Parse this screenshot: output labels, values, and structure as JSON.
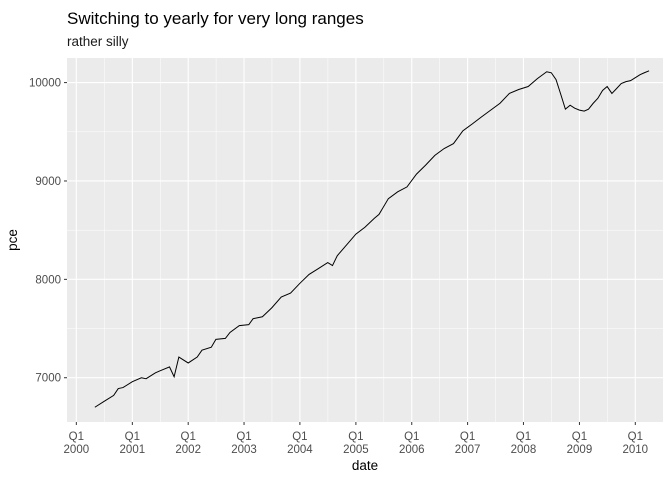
{
  "chart_data": {
    "type": "line",
    "title": "Switching to yearly for very long ranges",
    "subtitle": "rather silly",
    "xlabel": "date",
    "ylabel": "pce",
    "background": "#EBEBEB",
    "grid": true,
    "grid_color": "#FFFFFF",
    "line_color": "#000000",
    "xlim": [
      "1999-11-01",
      "2010-07-01"
    ],
    "ylim": [
      6550,
      10250
    ],
    "x_ticks": [
      {
        "date": "2000-01-01",
        "label": "Q1\n2000"
      },
      {
        "date": "2001-01-01",
        "label": "Q1\n2001"
      },
      {
        "date": "2002-01-01",
        "label": "Q1\n2002"
      },
      {
        "date": "2003-01-01",
        "label": "Q1\n2003"
      },
      {
        "date": "2004-01-01",
        "label": "Q1\n2004"
      },
      {
        "date": "2005-01-01",
        "label": "Q1\n2005"
      },
      {
        "date": "2006-01-01",
        "label": "Q1\n2006"
      },
      {
        "date": "2007-01-01",
        "label": "Q1\n2007"
      },
      {
        "date": "2008-01-01",
        "label": "Q1\n2008"
      },
      {
        "date": "2009-01-01",
        "label": "Q1\n2009"
      },
      {
        "date": "2010-01-01",
        "label": "Q1\n2010"
      }
    ],
    "y_ticks": [
      7000,
      8000,
      9000,
      10000
    ],
    "x": [
      "2000-05",
      "2000-07",
      "2000-09",
      "2000-10",
      "2000-11",
      "2001-01",
      "2001-03",
      "2001-04",
      "2001-06",
      "2001-07",
      "2001-09",
      "2001-10",
      "2001-11",
      "2002-01",
      "2002-03",
      "2002-04",
      "2002-06",
      "2002-07",
      "2002-09",
      "2002-10",
      "2002-12",
      "2003-02",
      "2003-03",
      "2003-05",
      "2003-07",
      "2003-09",
      "2003-11",
      "2004-01",
      "2004-03",
      "2004-05",
      "2004-07",
      "2004-08",
      "2004-09",
      "2004-11",
      "2005-01",
      "2005-03",
      "2005-05",
      "2005-06",
      "2005-08",
      "2005-10",
      "2005-12",
      "2006-02",
      "2006-04",
      "2006-06",
      "2006-08",
      "2006-10",
      "2006-12",
      "2007-02",
      "2007-04",
      "2007-06",
      "2007-08",
      "2007-10",
      "2007-12",
      "2008-02",
      "2008-04",
      "2008-06",
      "2008-07",
      "2008-08",
      "2008-09",
      "2008-10",
      "2008-11",
      "2008-12",
      "2009-01",
      "2009-02",
      "2009-03",
      "2009-04",
      "2009-05",
      "2009-06",
      "2009-07",
      "2009-08",
      "2009-09",
      "2009-10",
      "2009-11",
      "2009-12",
      "2010-01",
      "2010-02",
      "2010-03",
      "2010-04"
    ],
    "series": [
      {
        "values": [
          6700,
          6760,
          6820,
          6890,
          6900,
          6960,
          7000,
          6990,
          7050,
          7070,
          7110,
          7010,
          7210,
          7150,
          7210,
          7280,
          7310,
          7390,
          7400,
          7460,
          7530,
          7540,
          7600,
          7620,
          7710,
          7820,
          7860,
          7960,
          8050,
          8110,
          8170,
          8140,
          8240,
          8350,
          8460,
          8530,
          8620,
          8660,
          8820,
          8890,
          8940,
          9070,
          9160,
          9260,
          9330,
          9380,
          9510,
          9580,
          9650,
          9720,
          9790,
          9890,
          9930,
          9960,
          10040,
          10110,
          10100,
          10030,
          9880,
          9730,
          9770,
          9740,
          9720,
          9710,
          9730,
          9790,
          9840,
          9920,
          9960,
          9890,
          9940,
          9990,
          10010,
          10020,
          10050,
          10080,
          10100,
          10120
        ]
      }
    ]
  }
}
